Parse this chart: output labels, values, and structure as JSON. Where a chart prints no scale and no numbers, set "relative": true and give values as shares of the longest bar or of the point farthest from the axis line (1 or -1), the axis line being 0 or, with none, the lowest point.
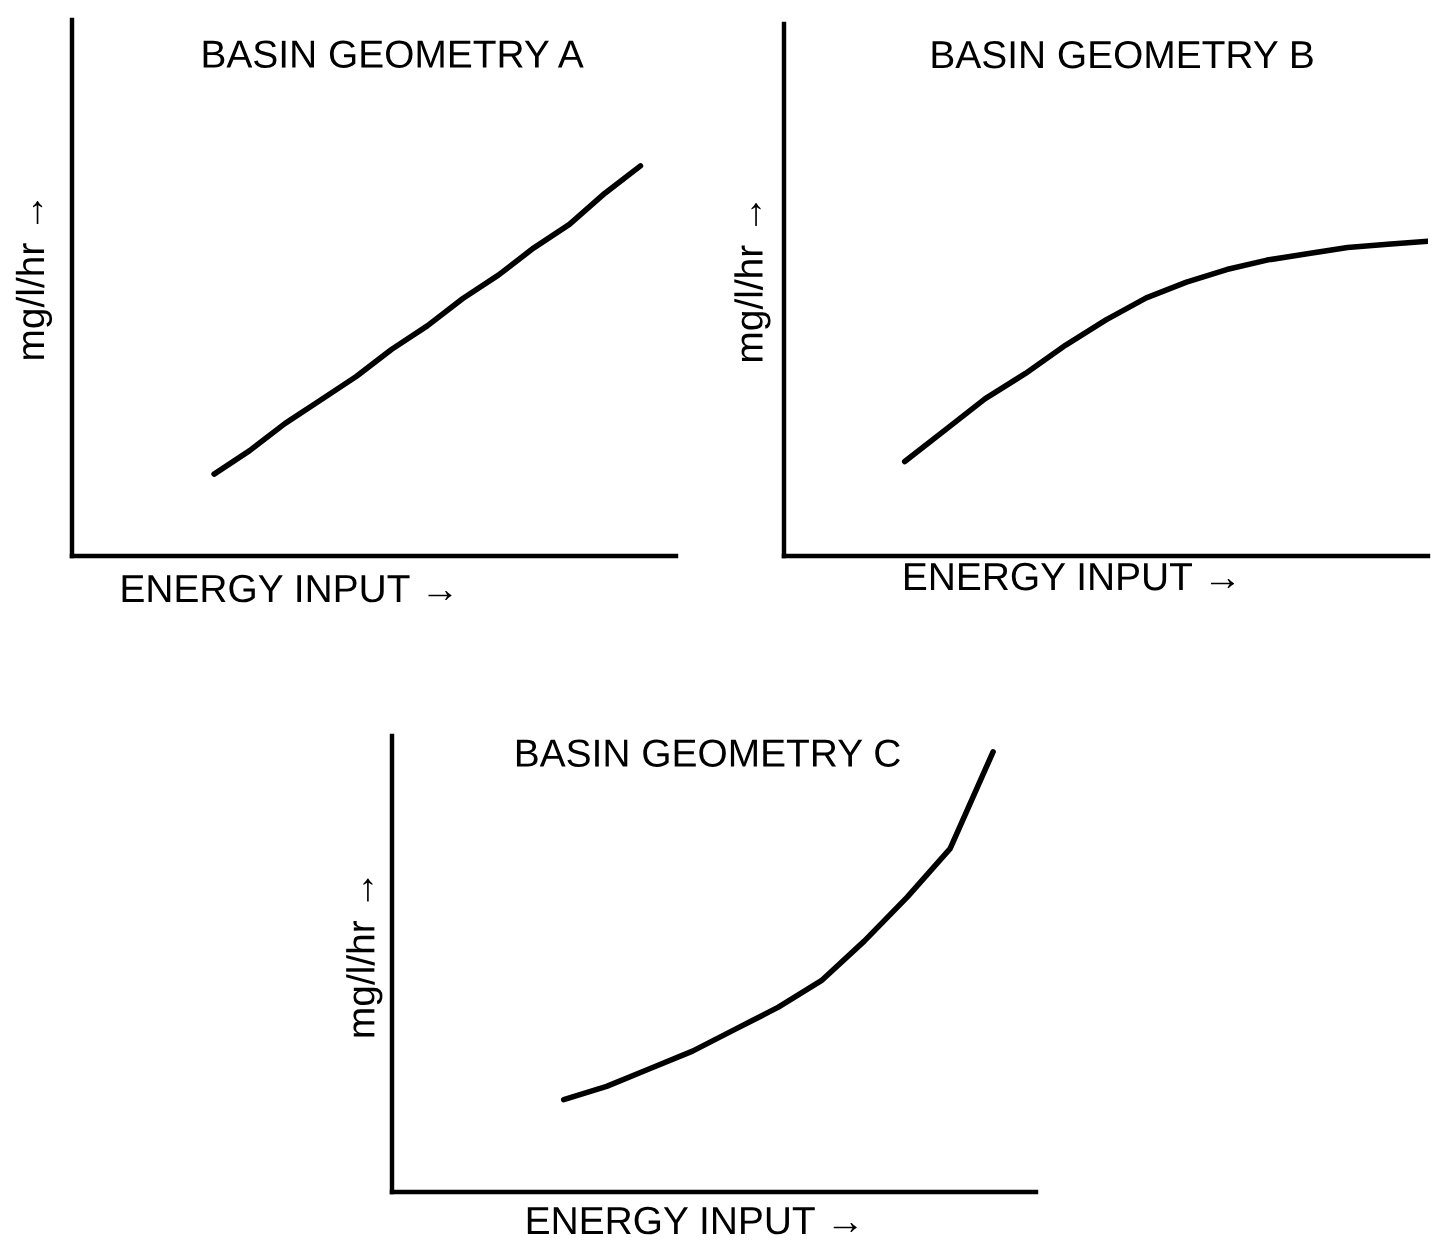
{
  "chart_data": [
    {
      "type": "line",
      "title": "BASIN GEOMETRY A",
      "xlabel": "ENERGY INPUT →",
      "ylabel": "mg/l/hr →",
      "relative": true,
      "categories": [
        null,
        null,
        null,
        null,
        null,
        null,
        null,
        null,
        null,
        null,
        null,
        null,
        null,
        null,
        null,
        null,
        null,
        null
      ],
      "series": [
        {
          "color": "#000000",
          "values": [
            null,
            null,
            null,
            null,
            0.21,
            0.27,
            0.34,
            0.4,
            0.46,
            0.53,
            0.59,
            0.66,
            0.72,
            0.79,
            0.85,
            0.93,
            1.0,
            null
          ]
        }
      ]
    },
    {
      "type": "line",
      "title": "BASIN GEOMETRY B",
      "xlabel": "ENERGY INPUT →",
      "ylabel": "mg/l/hr →",
      "relative": true,
      "categories": [
        null,
        null,
        null,
        null,
        null,
        null,
        null,
        null,
        null,
        null,
        null,
        null,
        null,
        null,
        null,
        null,
        null
      ],
      "series": [
        {
          "color": "#000000",
          "values": [
            null,
            null,
            null,
            0.3,
            0.4,
            0.5,
            0.58,
            0.67,
            0.75,
            0.82,
            0.87,
            0.91,
            0.94,
            0.96,
            0.98,
            0.99,
            1.0
          ]
        }
      ]
    },
    {
      "type": "line",
      "title": "BASIN GEOMETRY C",
      "xlabel": "ENERGY INPUT →",
      "ylabel": "mg/l/hr →",
      "relative": true,
      "categories": [
        null,
        null,
        null,
        null,
        null,
        null,
        null,
        null,
        null,
        null,
        null,
        null,
        null,
        null,
        null,
        null
      ],
      "series": [
        {
          "color": "#000000",
          "values": [
            null,
            null,
            null,
            null,
            0.21,
            0.24,
            0.28,
            0.32,
            0.37,
            0.42,
            0.48,
            0.57,
            0.67,
            0.78,
            1.0,
            null
          ]
        }
      ]
    }
  ]
}
